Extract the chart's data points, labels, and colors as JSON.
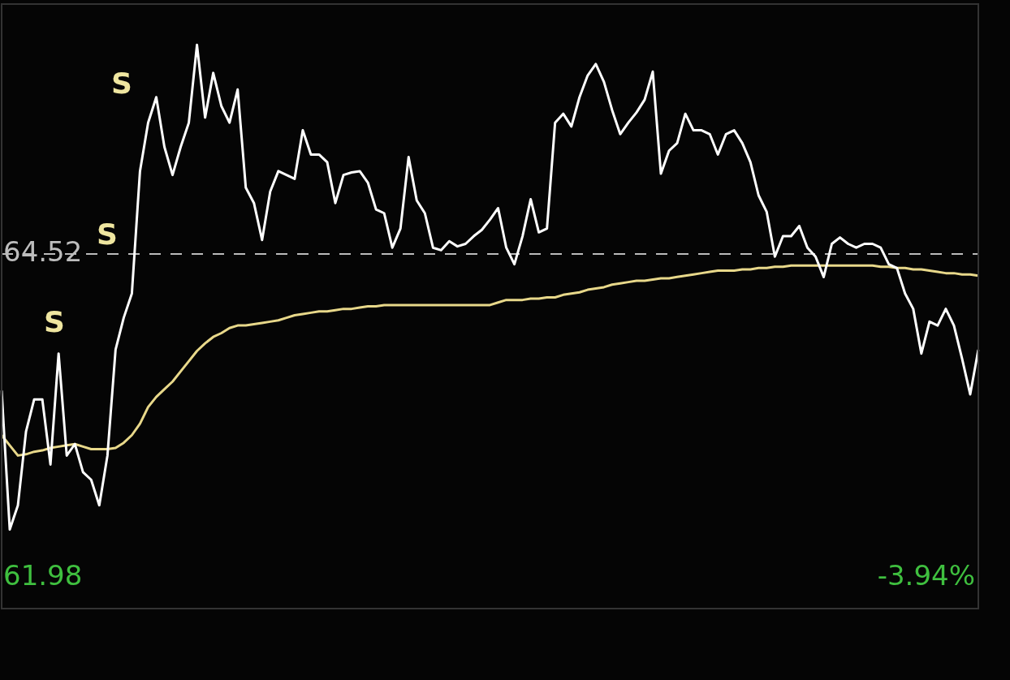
{
  "chart_data": {
    "type": "line",
    "categories": [
      null,
      null,
      null,
      null,
      null,
      null,
      null,
      null,
      null,
      null,
      null,
      null,
      null,
      null,
      null,
      null,
      null,
      null,
      null,
      null,
      null,
      null,
      null,
      null,
      null,
      null,
      null,
      null,
      null,
      null,
      null,
      null,
      null,
      null,
      null,
      null,
      null,
      null,
      null,
      null,
      null,
      null,
      null,
      null,
      null,
      null,
      null,
      null,
      null,
      null,
      null,
      null,
      null,
      null,
      null,
      null,
      null,
      null,
      null,
      null,
      null,
      null,
      null,
      null,
      null,
      null,
      null,
      null,
      null,
      null,
      null,
      null,
      null,
      null,
      null,
      null,
      null,
      null,
      null,
      null,
      null,
      null,
      null,
      null,
      null,
      null,
      null,
      null,
      null,
      null,
      null,
      null,
      null,
      null,
      null,
      null,
      null,
      null,
      null,
      null,
      null,
      null,
      null,
      null,
      null,
      null,
      null,
      null,
      null,
      null,
      null,
      null,
      null,
      null,
      null,
      null,
      null,
      null,
      null,
      null,
      null
    ],
    "ylim": [
      61.74,
      66.48
    ],
    "yticks": [
      {
        "value": 64.52,
        "label": "64.52"
      },
      {
        "value": 61.98,
        "label": "61.98"
      }
    ],
    "tick_labels": "y",
    "legend": false,
    "marker": "none",
    "line_style": "solid",
    "ref_lines": [
      {
        "axis": "y",
        "value": 64.52,
        "color": "#bbbbbb",
        "line_style": "dashed"
      }
    ],
    "annotations": [
      "S",
      "S",
      "S",
      "-3.94%"
    ],
    "series": [
      {
        "color": "#ffffff",
        "values": [
          63.45,
          62.36,
          62.55,
          63.13,
          63.38,
          63.38,
          62.87,
          63.74,
          62.94,
          63.03,
          62.81,
          62.75,
          62.55,
          62.94,
          63.77,
          64.02,
          64.21,
          65.17,
          65.55,
          65.75,
          65.36,
          65.14,
          65.36,
          65.55,
          66.16,
          65.59,
          65.94,
          65.68,
          65.55,
          65.81,
          65.04,
          64.92,
          64.63,
          65.01,
          65.17,
          65.14,
          65.11,
          65.49,
          65.3,
          65.3,
          65.24,
          64.92,
          65.14,
          65.16,
          65.17,
          65.08,
          64.87,
          64.84,
          64.57,
          64.72,
          65.28,
          64.94,
          64.84,
          64.57,
          64.55,
          64.62,
          64.58,
          64.6,
          64.66,
          64.71,
          64.79,
          64.88,
          64.57,
          64.44,
          64.66,
          64.95,
          64.69,
          64.72,
          65.55,
          65.62,
          65.52,
          65.75,
          65.92,
          66.01,
          65.87,
          65.65,
          65.46,
          65.55,
          65.63,
          65.73,
          65.95,
          65.15,
          65.33,
          65.39,
          65.62,
          65.49,
          65.49,
          65.46,
          65.3,
          65.46,
          65.49,
          65.39,
          65.24,
          64.98,
          64.85,
          64.5,
          64.66,
          64.66,
          64.74,
          64.57,
          64.5,
          64.34,
          64.6,
          64.65,
          64.6,
          64.57,
          64.6,
          64.6,
          64.57,
          64.44,
          64.41,
          64.21,
          64.09,
          63.74,
          63.99,
          63.96,
          64.09,
          63.96,
          63.7,
          63.42,
          63.77
        ]
      },
      {
        "color": "#e8d88a",
        "values": [
          63.1,
          63.02,
          62.94,
          62.95,
          62.97,
          62.98,
          63.0,
          63.01,
          63.02,
          63.03,
          63.01,
          62.99,
          62.99,
          62.99,
          63.0,
          63.04,
          63.1,
          63.19,
          63.32,
          63.4,
          63.46,
          63.52,
          63.6,
          63.68,
          63.76,
          63.82,
          63.87,
          63.9,
          63.94,
          63.96,
          63.96,
          63.97,
          63.98,
          63.99,
          64.0,
          64.02,
          64.04,
          64.05,
          64.06,
          64.07,
          64.07,
          64.08,
          64.09,
          64.09,
          64.1,
          64.11,
          64.11,
          64.12,
          64.12,
          64.12,
          64.12,
          64.12,
          64.12,
          64.12,
          64.12,
          64.12,
          64.12,
          64.12,
          64.12,
          64.12,
          64.12,
          64.14,
          64.16,
          64.16,
          64.16,
          64.17,
          64.17,
          64.18,
          64.18,
          64.2,
          64.21,
          64.22,
          64.24,
          64.25,
          64.26,
          64.28,
          64.29,
          64.3,
          64.31,
          64.31,
          64.32,
          64.33,
          64.33,
          64.34,
          64.35,
          64.36,
          64.37,
          64.38,
          64.39,
          64.39,
          64.39,
          64.4,
          64.4,
          64.41,
          64.41,
          64.42,
          64.42,
          64.43,
          64.43,
          64.43,
          64.43,
          64.43,
          64.43,
          64.43,
          64.43,
          64.43,
          64.43,
          64.43,
          64.42,
          64.42,
          64.41,
          64.41,
          64.4,
          64.4,
          64.39,
          64.38,
          64.37,
          64.37,
          64.36,
          64.36,
          64.35
        ]
      }
    ]
  }
}
